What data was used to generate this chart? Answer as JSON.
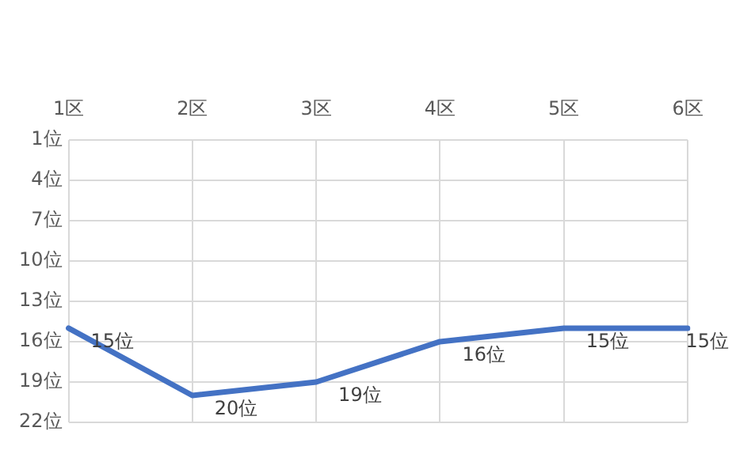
{
  "chart_data": {
    "type": "line",
    "categories": [
      "1区",
      "2区",
      "3区",
      "4区",
      "5区",
      "6区"
    ],
    "series": [
      {
        "color": "#4472c4",
        "values": [
          15,
          20,
          19,
          16,
          15,
          15
        ],
        "value_labels": [
          "15位",
          "20位",
          "19位",
          "16位",
          "15位",
          "15位"
        ]
      }
    ],
    "ylim": [
      22,
      1
    ],
    "yticks": [
      {
        "value": 1,
        "label": "1位"
      },
      {
        "value": 4,
        "label": "4位"
      },
      {
        "value": 7,
        "label": "7位"
      },
      {
        "value": 10,
        "label": "10位"
      },
      {
        "value": 13,
        "label": "13位"
      },
      {
        "value": 16,
        "label": "16位"
      },
      {
        "value": 19,
        "label": "19位"
      },
      {
        "value": 22,
        "label": "22位"
      }
    ],
    "grid": true,
    "marker": "none",
    "line_style": "solid"
  }
}
